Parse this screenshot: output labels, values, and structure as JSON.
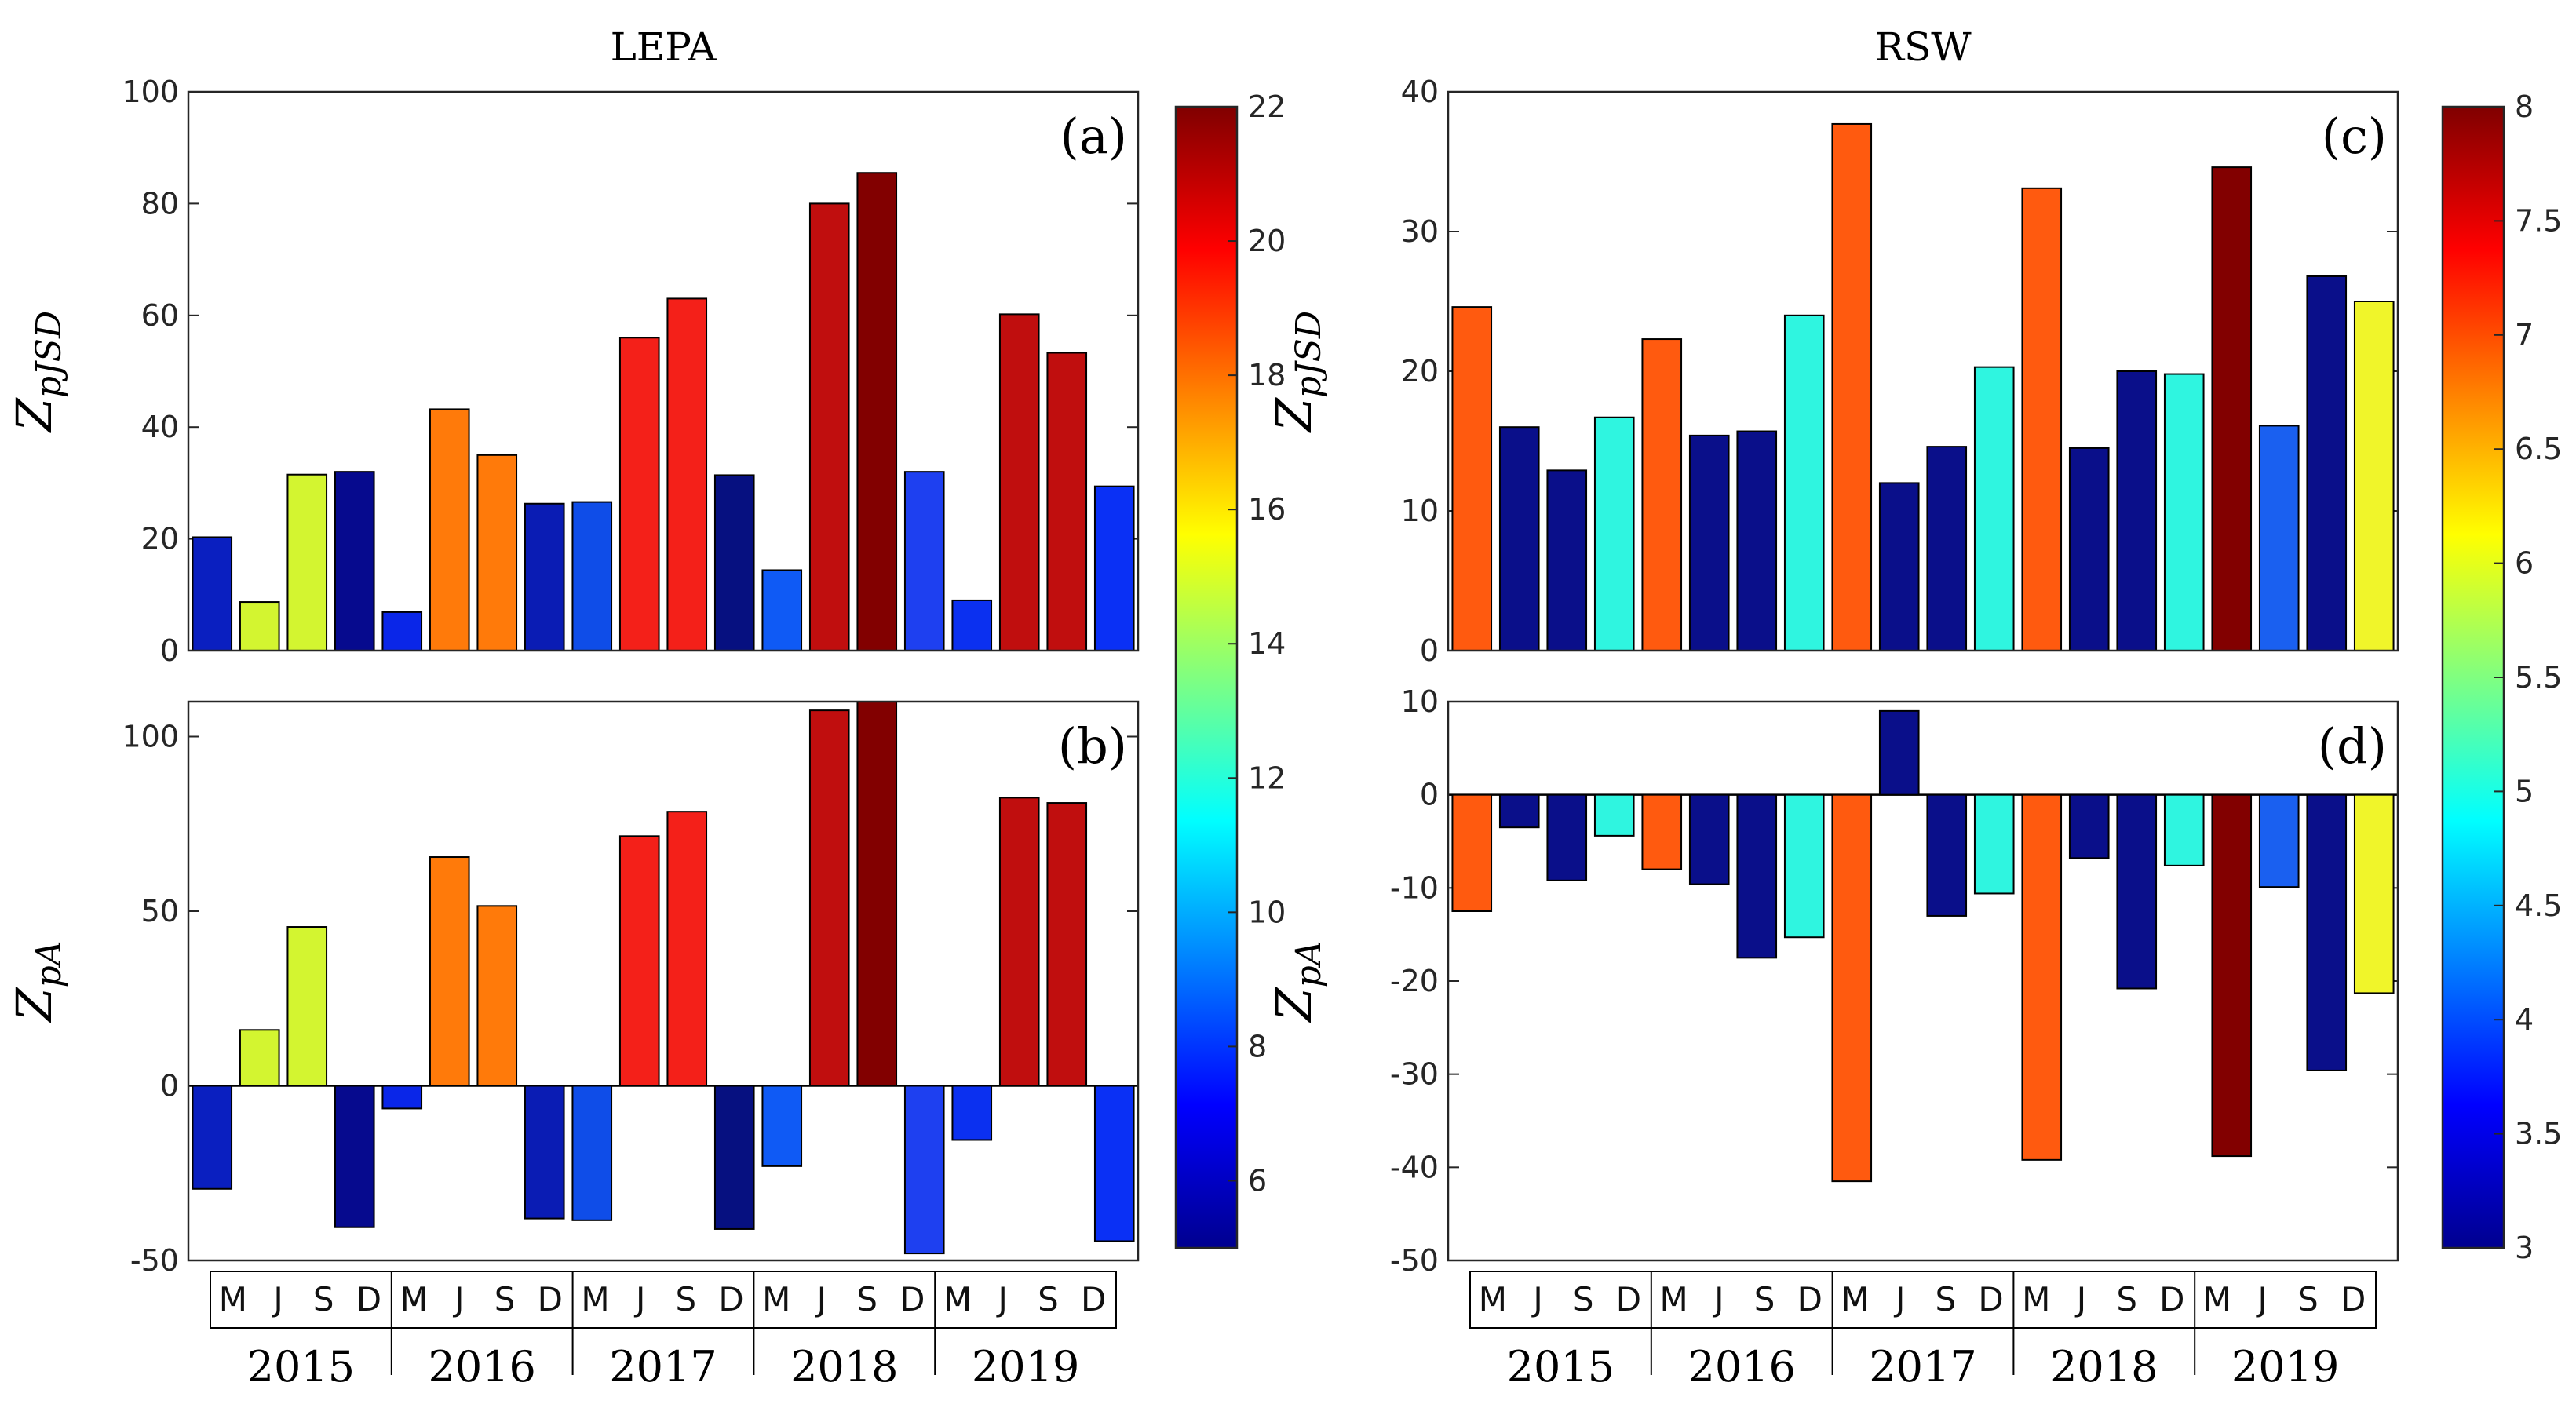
{
  "chart_data": [
    {
      "type": "bar",
      "id": "a",
      "title": "LEPA",
      "panel_label": "(a)",
      "ylabel": "Z_{pJSD}",
      "ylabel_main": "Z",
      "ylabel_sub": "pJSD",
      "ylim": [
        0,
        100
      ],
      "yticks": [
        0,
        20,
        40,
        60,
        80,
        100
      ],
      "categories": [
        "M",
        "J",
        "S",
        "D",
        "M",
        "J",
        "S",
        "D",
        "M",
        "J",
        "S",
        "D",
        "M",
        "J",
        "S",
        "D",
        "M",
        "J",
        "S",
        "D"
      ],
      "values": [
        20.3,
        8.7,
        31.5,
        32.0,
        6.9,
        43.2,
        35.0,
        26.3,
        26.6,
        56.0,
        63.0,
        31.4,
        14.4,
        80.0,
        85.5,
        32.0,
        9.0,
        60.2,
        53.3,
        29.4
      ],
      "colors": [
        "#0a1fc0",
        "#d3f530",
        "#d3f530",
        "#060a8e",
        "#0a26e8",
        "#ff7a0a",
        "#ff7a0a",
        "#0a1cb4",
        "#0f4de8",
        "#f42019",
        "#f42019",
        "#061080",
        "#0f5af5",
        "#c00e0e",
        "#820000",
        "#1e40f0",
        "#0b30f0",
        "#c00e0e",
        "#c00e0e",
        "#0a30f5"
      ],
      "colorbar": {
        "min": 5,
        "max": 22,
        "ticks": [
          6,
          8,
          10,
          12,
          14,
          16,
          18,
          20,
          22
        ]
      }
    },
    {
      "type": "bar",
      "id": "b",
      "panel_label": "(b)",
      "ylabel": "Z_{pA}",
      "ylabel_main": "Z",
      "ylabel_sub": "pA",
      "ylim": [
        -50,
        110
      ],
      "yticks": [
        -50,
        0,
        50,
        100
      ],
      "categories": [
        "M",
        "J",
        "S",
        "D",
        "M",
        "J",
        "S",
        "D",
        "M",
        "J",
        "S",
        "D",
        "M",
        "J",
        "S",
        "D",
        "M",
        "J",
        "S",
        "D"
      ],
      "values": [
        -29.5,
        16.0,
        45.5,
        -40.5,
        -6.5,
        65.5,
        51.5,
        -38.0,
        -38.5,
        71.5,
        78.5,
        -41.0,
        -23.0,
        107.5,
        110.0,
        -48.0,
        -15.5,
        82.5,
        81.0,
        -44.5
      ],
      "colors": [
        "#0a1fc0",
        "#d3f530",
        "#d3f530",
        "#060a8e",
        "#0a26e8",
        "#ff7a0a",
        "#ff7a0a",
        "#0a1cb4",
        "#0f4de8",
        "#f42019",
        "#f42019",
        "#061080",
        "#0f5af5",
        "#c00e0e",
        "#820000",
        "#1e40f0",
        "#0b30f0",
        "#c00e0e",
        "#c00e0e",
        "#0a30f5"
      ],
      "years": [
        "2015",
        "2016",
        "2017",
        "2018",
        "2019"
      ]
    },
    {
      "type": "bar",
      "id": "c",
      "title": "RSW",
      "panel_label": "(c)",
      "ylabel": "Z_{pJSD}",
      "ylabel_main": "Z",
      "ylabel_sub": "pJSD",
      "ylim": [
        0,
        40
      ],
      "yticks": [
        0,
        10,
        20,
        30,
        40
      ],
      "categories": [
        "M",
        "J",
        "S",
        "D",
        "M",
        "J",
        "S",
        "D",
        "M",
        "J",
        "S",
        "D",
        "M",
        "J",
        "S",
        "D",
        "M",
        "J",
        "S",
        "D"
      ],
      "values": [
        24.6,
        16.0,
        12.9,
        16.7,
        22.3,
        15.4,
        15.7,
        24.0,
        37.7,
        12.0,
        14.6,
        20.3,
        33.1,
        14.5,
        20.0,
        19.8,
        34.6,
        16.1,
        26.8,
        25.0
      ],
      "colors": [
        "#ff5a0f",
        "#0a0f8a",
        "#0a0f8a",
        "#2ff5e0",
        "#ff5a0f",
        "#0a0f8a",
        "#0a0f8a",
        "#2ff5e0",
        "#ff5a0f",
        "#0a0f8a",
        "#0a0f8a",
        "#2ff5e0",
        "#ff5a0f",
        "#0a0f8a",
        "#0a0f8a",
        "#2ff5e0",
        "#820000",
        "#1a60f0",
        "#0a0f8a",
        "#f0f52a"
      ],
      "colorbar": {
        "min": 3,
        "max": 8,
        "ticks": [
          3,
          3.5,
          4,
          4.5,
          5,
          5.5,
          6,
          6.5,
          7,
          7.5,
          8
        ]
      }
    },
    {
      "type": "bar",
      "id": "d",
      "panel_label": "(d)",
      "ylabel": "Z_{pA}",
      "ylabel_main": "Z",
      "ylabel_sub": "pA",
      "ylim": [
        -50,
        10
      ],
      "yticks": [
        -50,
        -40,
        -30,
        -20,
        -10,
        0,
        10
      ],
      "categories": [
        "M",
        "J",
        "S",
        "D",
        "M",
        "J",
        "S",
        "D",
        "M",
        "J",
        "S",
        "D",
        "M",
        "J",
        "S",
        "D",
        "M",
        "J",
        "S",
        "D"
      ],
      "values": [
        -12.5,
        -3.5,
        -9.2,
        -4.4,
        -8.0,
        -9.6,
        -17.5,
        -15.3,
        -41.5,
        9.0,
        -13.0,
        -10.6,
        -39.2,
        -6.8,
        -20.8,
        -7.6,
        -38.8,
        -9.9,
        -29.6,
        -21.3
      ],
      "colors": [
        "#ff5a0f",
        "#0a0f8a",
        "#0a0f8a",
        "#2ff5e0",
        "#ff5a0f",
        "#0a0f8a",
        "#0a0f8a",
        "#2ff5e0",
        "#ff5a0f",
        "#0a0f8a",
        "#0a0f8a",
        "#2ff5e0",
        "#ff5a0f",
        "#0a0f8a",
        "#0a0f8a",
        "#2ff5e0",
        "#820000",
        "#1a60f0",
        "#0a0f8a",
        "#f0f52a"
      ],
      "years": [
        "2015",
        "2016",
        "2017",
        "2018",
        "2019"
      ]
    }
  ]
}
